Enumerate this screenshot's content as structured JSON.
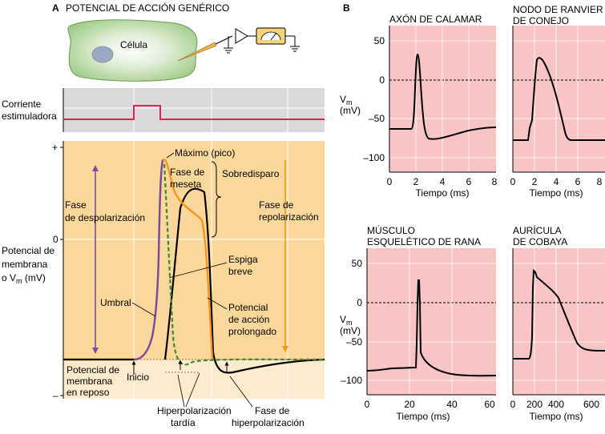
{
  "panel_a": {
    "letter": "A",
    "title": "POTENCIAL DE ACCIÓN GENÉRICO",
    "cell_label": "Célula",
    "stim_label_1": "Corriente",
    "stim_label_2": "estimuladora",
    "y_label_1": "Potencial de",
    "y_label_2": "membrana",
    "y_label_3": "o V",
    "y_label_sub": "m",
    "y_label_4": " (mV)",
    "y_tick_plus": "+",
    "y_tick_zero": "0",
    "y_tick_minus": "–",
    "labels": {
      "max_peak": "Máximo (pico)",
      "plateau_1": "Fase de",
      "plateau_2": "meseta",
      "overshoot": "Sobredisparo",
      "depol_1": "Fase",
      "depol_2": "de despolarización",
      "repol_1": "Fase de",
      "repol_2": "repolarización",
      "threshold": "Umbral",
      "brief_1": "Espiga",
      "brief_2": "breve",
      "prolonged_1": "Potencial",
      "prolonged_2": "de acción",
      "prolonged_3": "prolongado",
      "rest_1": "Potencial de",
      "rest_2": "membrana",
      "rest_3": "en reposo",
      "onset": "Inicio",
      "late_hyper_1": "Hiperpolarización",
      "late_hyper_2": "tardía",
      "hyper_phase_1": "Fase de",
      "hyper_phase_2": "hiperpolarización"
    }
  },
  "panel_b": {
    "letter": "B",
    "y_axis_label": "V",
    "y_axis_sub": "m",
    "y_axis_unit": "(mV)",
    "y_ticks": [
      "50",
      "0",
      "–50",
      "–100"
    ],
    "plots": [
      {
        "title_1": "AXÓN DE CALAMAR",
        "title_2": "",
        "x_ticks": [
          "0",
          "2",
          "4",
          "6",
          "8"
        ],
        "x_label": "Tiempo (ms)"
      },
      {
        "title_1": "NODO DE RANVIER",
        "title_2": "DE CONEJO",
        "x_ticks": [
          "0",
          "2",
          "4",
          "6",
          "8"
        ],
        "x_label": "Tiempo (ms)"
      },
      {
        "title_1": "MÚSCULO",
        "title_2": "ESQUELÉTICO DE RANA",
        "x_ticks": [
          "0",
          "20",
          "40",
          "60"
        ],
        "x_label": "Tiempo (ms)"
      },
      {
        "title_1": "AURÍCULA",
        "title_2": "DE COBAYA",
        "x_ticks": [
          "0",
          "200",
          "400",
          "600"
        ],
        "x_label": "Tiempo (ms)"
      }
    ]
  },
  "colors": {
    "panel_orange": "#fbd89a",
    "panel_pink": "#f9c4c4",
    "purple": "#7a4b9e",
    "orange_line": "#f7941d",
    "green_dash": "#3d8a2e",
    "red_stim": "#e0234e",
    "cell_green": "#a9d18e"
  }
}
